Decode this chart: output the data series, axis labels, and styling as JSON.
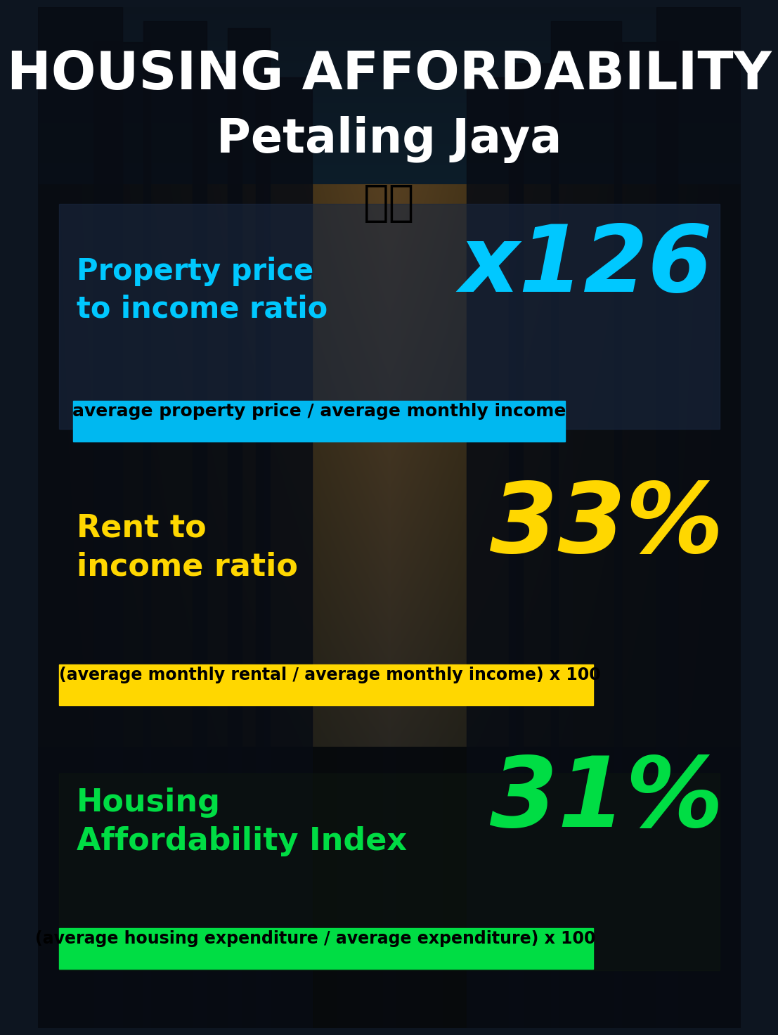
{
  "title_line1": "HOUSING AFFORDABILITY",
  "title_line2": "Petaling Jaya",
  "flag_emoji": "🇲🇾",
  "bg_color": "#0d1520",
  "section1_label": "Property price\nto income ratio",
  "section1_value": "x126",
  "section1_label_color": "#00c8ff",
  "section1_value_color": "#00c8ff",
  "section1_subtext": "average property price / average monthly income",
  "section1_sub_bg": "#00b8f0",
  "section1_sub_text_color": "#000000",
  "section2_label": "Rent to\nincome ratio",
  "section2_value": "33%",
  "section2_label_color": "#FFD700",
  "section2_value_color": "#FFD700",
  "section2_subtext": "(average monthly rental / average monthly income) x 100",
  "section2_sub_bg": "#FFD700",
  "section2_sub_text_color": "#000000",
  "section3_label": "Housing\nAffordability Index",
  "section3_value": "31%",
  "section3_label_color": "#00dd44",
  "section3_value_color": "#00dd44",
  "section3_subtext": "(average housing expenditure / average expenditure) x 100",
  "section3_sub_bg": "#00dd44",
  "section3_sub_text_color": "#000000",
  "title_fontsize": 54,
  "subtitle_fontsize": 48,
  "label_fontsize": 30,
  "value_fontsize": 95,
  "sub_fontsize": 16
}
